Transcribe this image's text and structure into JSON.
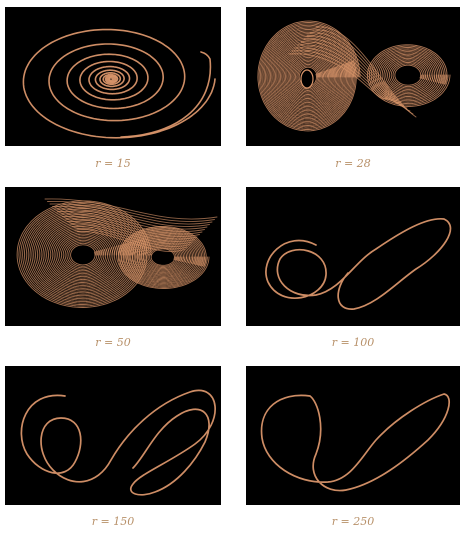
{
  "accent_color": "#d9956a",
  "panels": [
    {
      "label": "r = 15"
    },
    {
      "label": "r = 28"
    },
    {
      "label": "r = 50"
    },
    {
      "label": "r = 100"
    },
    {
      "label": "r = 150"
    },
    {
      "label": "r = 250"
    }
  ]
}
